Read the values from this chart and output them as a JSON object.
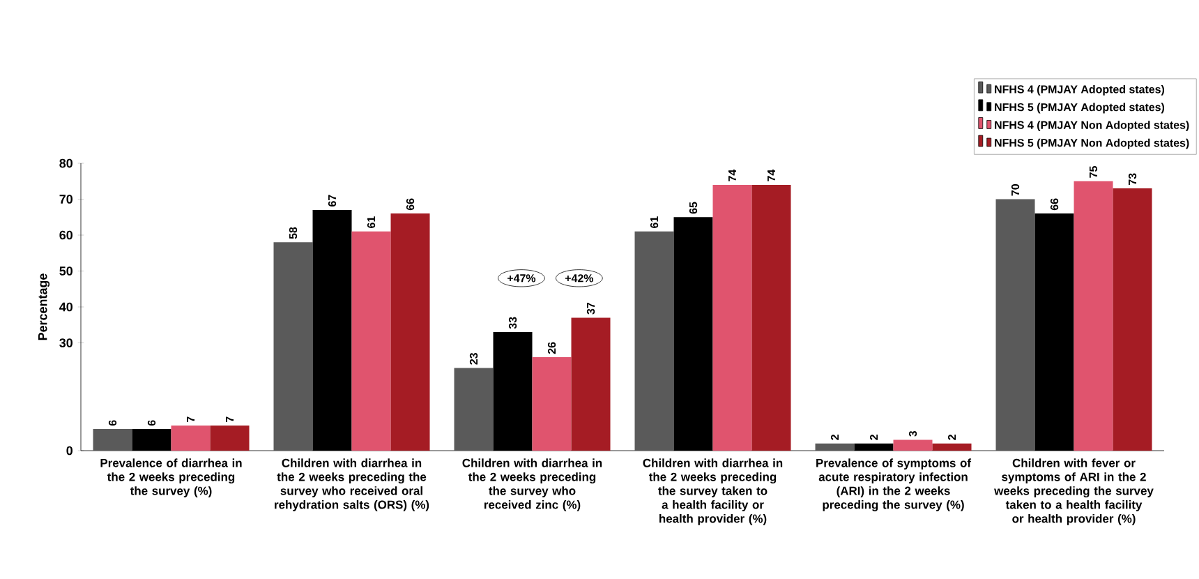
{
  "chart_data": {
    "type": "bar",
    "ylabel": "Percentage",
    "categories": [
      "Prevalence of diarrhea in the 2 weeks preceding the survey (%)",
      "Children with diarrhea in the 2 weeks preceding the survey who received oral rehydration salts (ORS) (%)",
      "Children with diarrhea in the 2 weeks preceding the survey who received zinc (%)",
      "Children with diarrhea in the 2 weeks preceding the survey taken to a health facility or health provider (%)",
      "Prevalence of symptoms of acute respiratory infection (ARI) in the 2 weeks preceding the survey (%)",
      "Children with fever or symptoms of ARI in the 2 weeks preceding the survey taken to a health facility or health provider (%)"
    ],
    "series": [
      {
        "name": "NFHS 4 (PMJAY Adopted states)",
        "color": "#5a5a5a",
        "values": [
          6,
          58,
          23,
          61,
          2,
          70
        ]
      },
      {
        "name": "NFHS 5 (PMJAY Adopted states)",
        "color": "#000000",
        "values": [
          6,
          67,
          33,
          65,
          2,
          66
        ]
      },
      {
        "name": "NFHS 4 (PMJAY Non Adopted states)",
        "color": "#e0546e",
        "values": [
          7,
          61,
          26,
          74,
          3,
          75
        ]
      },
      {
        "name": "NFHS 5 (PMJAY Non Adopted states)",
        "color": "#a51c24",
        "values": [
          7,
          66,
          37,
          74,
          2,
          73
        ]
      }
    ],
    "ylim": [
      0,
      80
    ],
    "yticks": [
      0,
      30,
      40,
      50,
      60,
      70,
      80
    ],
    "data_labels": true,
    "legend": "top right",
    "grid": false,
    "annotations": [
      "+47%",
      "+42%"
    ]
  }
}
